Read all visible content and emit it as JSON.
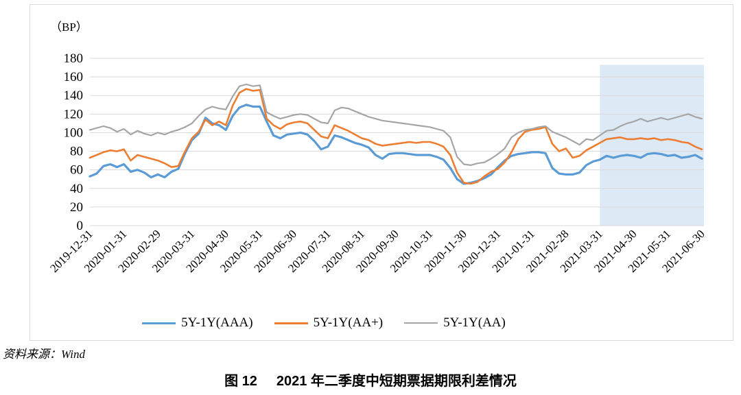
{
  "figure": {
    "source_note": "资料来源：Wind",
    "caption_prefix": "图 12",
    "caption_title": "2021 年二季度中短期票据期限利差情况"
  },
  "chart_data": {
    "type": "line",
    "title": "2021 年二季度中短期票据期限利差情况",
    "unit_label": "（BP）",
    "xlabel": "",
    "ylabel": "BP",
    "ylim": [
      0,
      180
    ],
    "ytick_step": 20,
    "yticks": [
      0,
      20,
      40,
      60,
      80,
      100,
      120,
      140,
      160,
      180
    ],
    "grid": true,
    "legend_position": "bottom",
    "x_tick_labels": [
      "2019-12-31",
      "2020-01-31",
      "2020-02-29",
      "2020-03-31",
      "2020-04-30",
      "2020-05-31",
      "2020-06-30",
      "2020-07-31",
      "2020-08-31",
      "2020-09-30",
      "2020-10-31",
      "2020-11-30",
      "2020-12-31",
      "2021-01-31",
      "2021-02-28",
      "2021-03-31",
      "2021-04-30",
      "2021-05-31",
      "2021-06-30"
    ],
    "x_range_ticks": [
      0,
      18
    ],
    "highlight_region": {
      "from_tick": "2021-03-31",
      "to_tick": "2021-06-30",
      "color": "#dde9f5",
      "top_value": 173,
      "bottom_value": 0
    },
    "colors": {
      "grid": "#d9d9d9",
      "chart_border": "#d9d9d9",
      "axis_text": "#000000"
    },
    "series": [
      {
        "name": "5Y-1Y(AAA)",
        "color": "#5B9BD5",
        "stroke_width": 3.2,
        "values": [
          53,
          56,
          64,
          66,
          63,
          66,
          58,
          60,
          57,
          52,
          55,
          52,
          58,
          61,
          78,
          92,
          99,
          116,
          110,
          108,
          103,
          118,
          127,
          130,
          128,
          128,
          112,
          97,
          94,
          98,
          99,
          100,
          98,
          91,
          82,
          85,
          97,
          95,
          92,
          89,
          87,
          84,
          76,
          72,
          77,
          78,
          78,
          77,
          76,
          76,
          76,
          74,
          71,
          62,
          50,
          45,
          46,
          48,
          51,
          55,
          63,
          70,
          75,
          77,
          78,
          79,
          79,
          78,
          62,
          56,
          55,
          55,
          57,
          65,
          69,
          71,
          75,
          73,
          75,
          76,
          75,
          73,
          77,
          78,
          77,
          75,
          76,
          73,
          74,
          76,
          72
        ]
      },
      {
        "name": "5Y-1Y(AA+)",
        "color": "#ED7D31",
        "stroke_width": 2.6,
        "values": [
          73,
          76,
          79,
          81,
          80,
          82,
          70,
          76,
          74,
          72,
          70,
          67,
          63,
          64,
          80,
          94,
          101,
          114,
          108,
          112,
          108,
          129,
          143,
          147,
          145,
          146,
          115,
          108,
          104,
          109,
          111,
          112,
          110,
          103,
          96,
          94,
          108,
          105,
          102,
          98,
          94,
          92,
          88,
          86,
          87,
          88,
          89,
          90,
          89,
          90,
          90,
          88,
          85,
          76,
          57,
          46,
          45,
          47,
          53,
          58,
          61,
          68,
          79,
          93,
          101,
          103,
          104,
          106,
          88,
          80,
          83,
          73,
          75,
          81,
          85,
          89,
          93,
          94,
          95,
          93,
          93,
          94,
          93,
          94,
          92,
          93,
          92,
          90,
          89,
          85,
          82
        ]
      },
      {
        "name": "5Y-1Y(AA)",
        "color": "#A5A5A5",
        "stroke_width": 2.2,
        "values": [
          103,
          105,
          107,
          105,
          101,
          104,
          98,
          102,
          99,
          97,
          100,
          98,
          101,
          103,
          106,
          110,
          118,
          125,
          128,
          126,
          125,
          139,
          150,
          152,
          150,
          151,
          122,
          118,
          115,
          117,
          119,
          120,
          119,
          115,
          111,
          110,
          124,
          127,
          126,
          123,
          120,
          117,
          115,
          113,
          112,
          111,
          110,
          109,
          108,
          107,
          106,
          104,
          102,
          95,
          74,
          66,
          65,
          67,
          68,
          72,
          77,
          83,
          95,
          100,
          103,
          104,
          106,
          107,
          101,
          98,
          95,
          91,
          87,
          93,
          92,
          97,
          102,
          103,
          107,
          110,
          112,
          115,
          112,
          114,
          116,
          114,
          116,
          118,
          120,
          117,
          115
        ]
      }
    ]
  }
}
